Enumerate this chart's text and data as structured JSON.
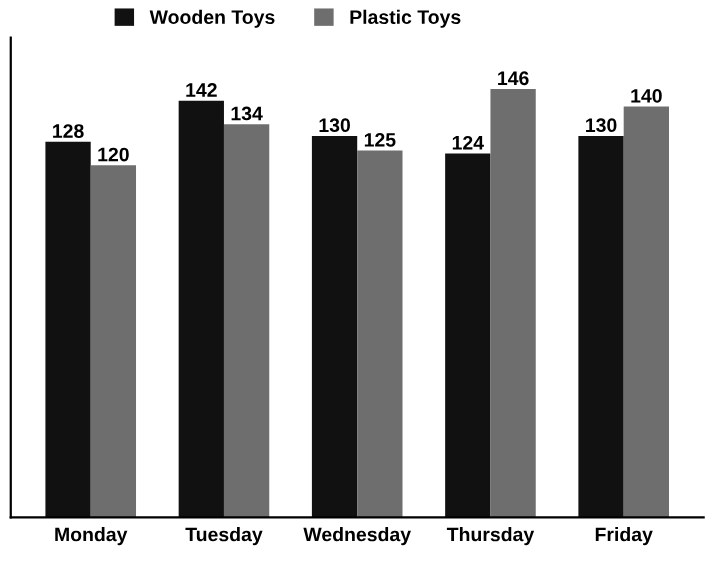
{
  "chart_data": {
    "type": "bar",
    "categories": [
      "Monday",
      "Tuesday",
      "Wednesday",
      "Thursday",
      "Friday"
    ],
    "series": [
      {
        "name": "Wooden Toys",
        "color": "#111111",
        "values": [
          128,
          142,
          130,
          124,
          130
        ]
      },
      {
        "name": "Plastic Toys",
        "color": "#6e6e6e",
        "values": [
          120,
          134,
          125,
          146,
          140
        ]
      }
    ],
    "data_labels": true,
    "legend": "top",
    "grid": false,
    "tick_labels": "x"
  }
}
